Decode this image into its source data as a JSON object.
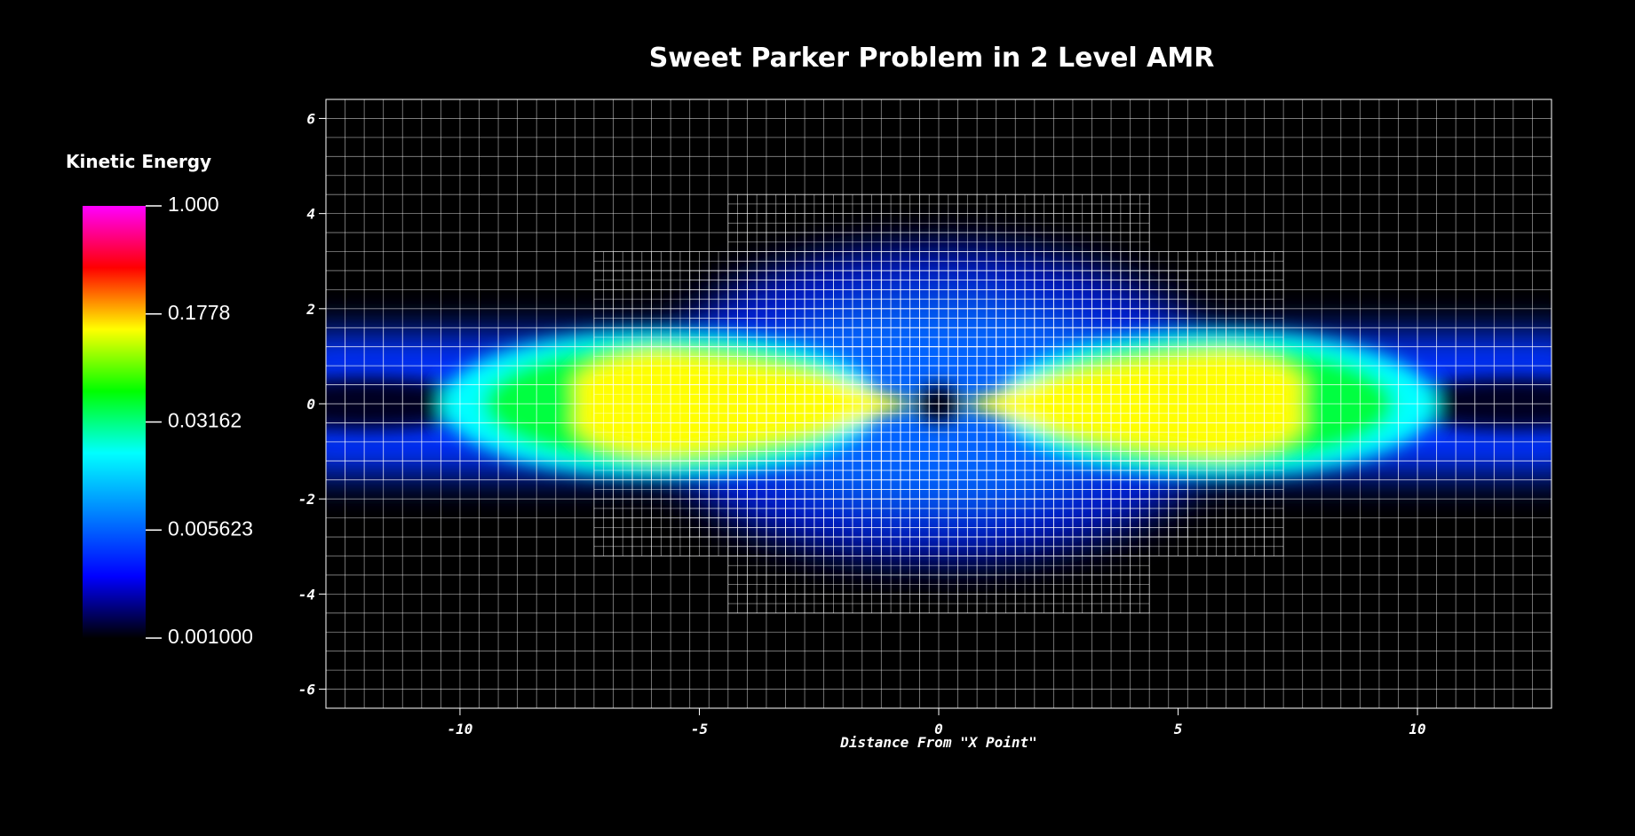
{
  "chart_data": {
    "type": "heatmap",
    "title": "Sweet Parker Problem in 2 Level AMR",
    "xlabel": "Distance From \"X Point\"",
    "xlim": [
      -12.8,
      12.8
    ],
    "xticks": [
      -10,
      -5,
      0,
      5,
      10
    ],
    "ylim": [
      -6.4,
      6.4
    ],
    "yticks": [
      -6,
      -4,
      -2,
      0,
      2,
      4,
      6
    ],
    "grid": true,
    "colorbar": {
      "title": "Kinetic Energy",
      "scale": "log",
      "lim": [
        0.001,
        1
      ],
      "ticks": [
        {
          "value": 1,
          "label": "1.000"
        },
        0.1778,
        0.03162,
        0.005623,
        {
          "value": 0.001,
          "label": "0.001000"
        }
      ],
      "colors": [
        "#000000",
        "#0000ff",
        "#0080ff",
        "#00ffff",
        "#00ff00",
        "#ffff00",
        "#ff0000",
        "#ff00ff"
      ]
    }
  }
}
